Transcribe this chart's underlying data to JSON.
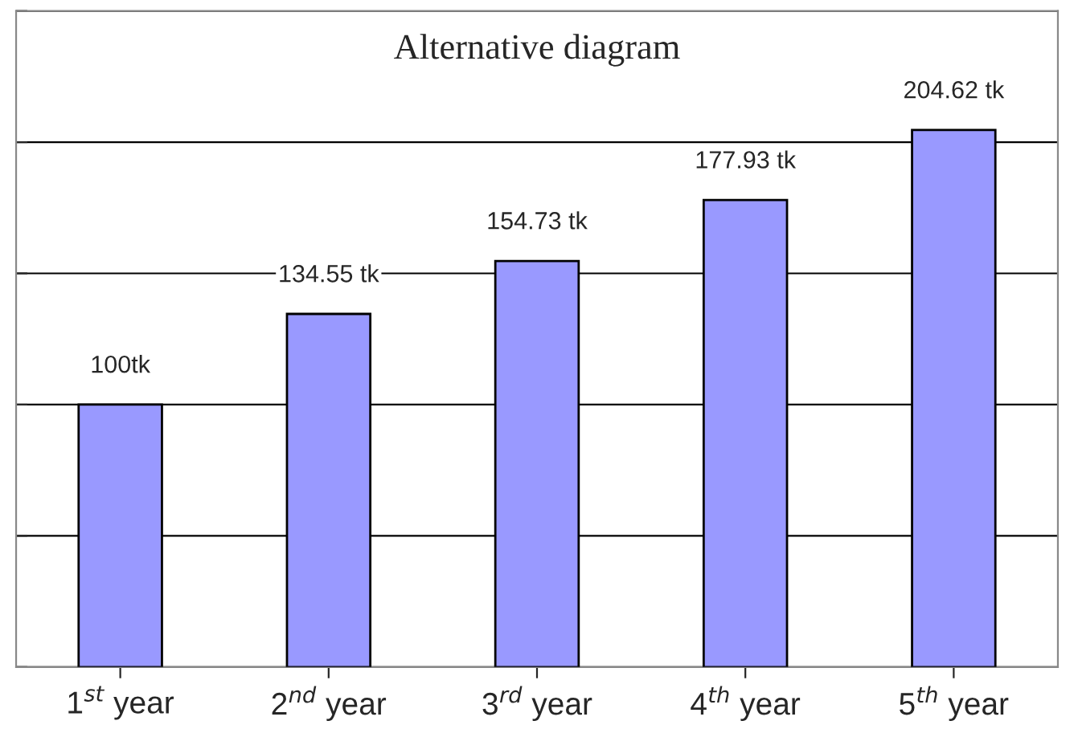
{
  "chart_data": {
    "type": "bar",
    "title": "Alternative diagram",
    "categories": [
      "1$^{st}$ year",
      "2$^{nd}$ year",
      "3$^{rd}$ year",
      "4$^{th}$ year",
      "5$^{th}$ year"
    ],
    "values": [
      100,
      134.55,
      154.73,
      177.93,
      204.62
    ],
    "value_labels": [
      "100tk",
      "134.55 tk",
      "154.73 tk",
      "177.93 tk",
      "204.62 tk"
    ],
    "color": "#9999ff",
    "ylim": [
      0,
      250
    ],
    "yticks": [
      {
        "value": 0,
        "label": null
      },
      {
        "value": 50,
        "label": null
      },
      {
        "value": 100,
        "label": null
      },
      {
        "value": 150,
        "label": null
      },
      {
        "value": 200,
        "label": null
      },
      {
        "value": 250,
        "label": null
      }
    ],
    "tick_labels": "x",
    "grid": "y",
    "legend": false
  }
}
